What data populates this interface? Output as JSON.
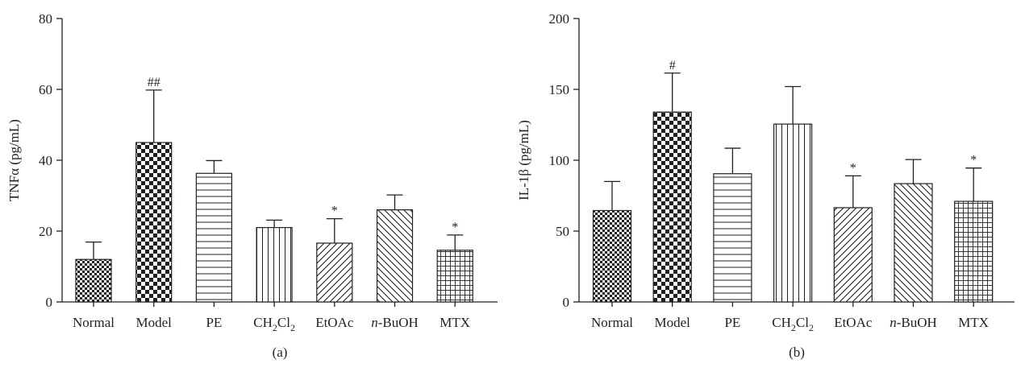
{
  "chart_data": [
    {
      "type": "bar",
      "panel_label": "(a)",
      "ylabel": "TNFα (pg/mL)",
      "ylim": [
        0,
        80
      ],
      "yticks": [
        0,
        20,
        40,
        60,
        80
      ],
      "categories": [
        "Normal",
        "Model",
        "PE",
        "CH2Cl2",
        "EtOAc",
        "n-BuOH",
        "MTX"
      ],
      "category_labels": [
        {
          "text": "Normal"
        },
        {
          "text": "Model"
        },
        {
          "text": "PE"
        },
        {
          "text": "CH",
          "sub1": "2",
          "mid": "Cl",
          "sub2": "2"
        },
        {
          "text": "EtOAc"
        },
        {
          "italic": "n",
          "text": "-BuOH"
        },
        {
          "text": "MTX"
        }
      ],
      "values": [
        12,
        45,
        36.3,
        21,
        16.6,
        26,
        14.6
      ],
      "errors": [
        4.9,
        14.8,
        3.6,
        2.1,
        6.9,
        4.2,
        4.3
      ],
      "markers": [
        "",
        "##",
        "",
        "",
        "*",
        "",
        "*"
      ],
      "patterns": [
        "checker-small",
        "checker-large",
        "hlines",
        "vlines",
        "diag-up",
        "diag-down",
        "grid"
      ],
      "grid": false
    },
    {
      "type": "bar",
      "panel_label": "(b)",
      "ylabel": "IL-1β (pg/mL)",
      "ylim": [
        0,
        200
      ],
      "yticks": [
        0,
        50,
        100,
        150,
        200
      ],
      "categories": [
        "Normal",
        "Model",
        "PE",
        "CH2Cl2",
        "EtOAc",
        "n-BuOH",
        "MTX"
      ],
      "category_labels": [
        {
          "text": "Normal"
        },
        {
          "text": "Model"
        },
        {
          "text": "PE"
        },
        {
          "text": "CH",
          "sub1": "2",
          "mid": "Cl",
          "sub2": "2"
        },
        {
          "text": "EtOAc"
        },
        {
          "italic": "n",
          "text": "-BuOH"
        },
        {
          "text": "MTX"
        }
      ],
      "values": [
        64.5,
        134,
        90.5,
        125.5,
        66.5,
        83.5,
        71
      ],
      "errors": [
        20.5,
        27.5,
        18,
        26.5,
        22.5,
        17,
        23.5
      ],
      "markers": [
        "",
        "#",
        "",
        "",
        "*",
        "",
        "*"
      ],
      "patterns": [
        "checker-small",
        "checker-large",
        "hlines",
        "vlines",
        "diag-up",
        "diag-down",
        "grid"
      ],
      "grid": false
    }
  ]
}
